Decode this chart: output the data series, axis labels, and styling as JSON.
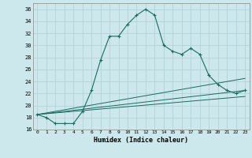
{
  "title": "",
  "xlabel": "Humidex (Indice chaleur)",
  "ylabel": "",
  "bg_color": "#cde8ec",
  "grid_color": "#aecfd4",
  "line_color": "#1a6b60",
  "xlim": [
    -0.5,
    23.5
  ],
  "ylim": [
    16,
    37
  ],
  "yticks": [
    16,
    18,
    20,
    22,
    24,
    26,
    28,
    30,
    32,
    34,
    36
  ],
  "xticks": [
    0,
    1,
    2,
    3,
    4,
    5,
    6,
    7,
    8,
    9,
    10,
    11,
    12,
    13,
    14,
    15,
    16,
    17,
    18,
    19,
    20,
    21,
    22,
    23
  ],
  "series1_x": [
    0,
    1,
    2,
    3,
    4,
    5,
    6,
    7,
    8,
    9,
    10,
    11,
    12,
    13,
    14,
    15,
    16,
    17,
    18,
    19,
    20,
    21,
    22,
    23
  ],
  "series1_y": [
    18.5,
    18.0,
    17.0,
    17.0,
    17.0,
    19.0,
    22.5,
    27.5,
    31.5,
    31.5,
    33.5,
    35.0,
    36.0,
    35.0,
    30.0,
    29.0,
    28.5,
    29.5,
    28.5,
    25.0,
    23.5,
    22.5,
    22.0,
    22.5
  ],
  "series2_x": [
    0,
    23
  ],
  "series2_y": [
    18.5,
    24.5
  ],
  "series3_x": [
    0,
    23
  ],
  "series3_y": [
    18.5,
    22.5
  ],
  "series4_x": [
    0,
    23
  ],
  "series4_y": [
    18.5,
    21.5
  ],
  "marker1_x": [
    2,
    3,
    4,
    5,
    6,
    7,
    8,
    9,
    10,
    11,
    12,
    13,
    14,
    15,
    16,
    17,
    18,
    19,
    20,
    21,
    22,
    23
  ],
  "marker1_y": [
    17.0,
    17.0,
    17.0,
    19.0,
    22.5,
    27.5,
    31.5,
    31.5,
    33.5,
    35.0,
    36.0,
    35.0,
    30.0,
    29.0,
    28.5,
    29.5,
    28.5,
    25.0,
    23.5,
    22.5,
    22.0,
    22.5
  ]
}
